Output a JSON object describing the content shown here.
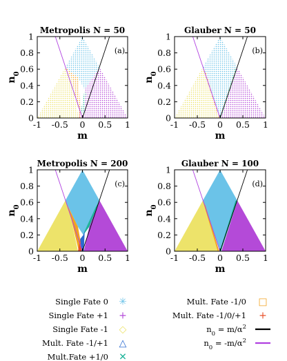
{
  "colors": {
    "fate0": "#6bc3e8",
    "fate_plus1": "#b44ad8",
    "fate_minus1": "#ede36a",
    "mult_m1_p1": "#2a6ad0",
    "mult_p1_0": "#1fb39a",
    "mult_m1_0": "#f2a321",
    "mult_m1_0_p1": "#e8502a",
    "line_pos": "#000000",
    "line_neg": "#b040e0"
  },
  "chart_data": [
    {
      "id": "a",
      "type": "area",
      "title": "Metropolis N = 50",
      "panel_label": "(a)",
      "xlabel": "m",
      "ylabel": "n0",
      "xlim": [
        -1,
        1
      ],
      "ylim": [
        0,
        1
      ],
      "xticks": [
        "-1",
        "-0.5",
        "0",
        "0.5",
        "1"
      ],
      "yticks": [
        "0",
        "0.2",
        "0.4",
        "0.6",
        "0.8",
        "1"
      ],
      "style": "dotted",
      "regions": [
        {
          "fate": "fate0",
          "polygon": [
            [
              -0.38,
              0.62
            ],
            [
              0,
              1
            ],
            [
              0.38,
              0.62
            ],
            [
              0.05,
              0.35
            ],
            [
              -0.1,
              0.5
            ]
          ]
        },
        {
          "fate": "fate_plus1",
          "polygon": [
            [
              0.05,
              0.35
            ],
            [
              0.38,
              0.62
            ],
            [
              1,
              0
            ],
            [
              0.02,
              0
            ]
          ]
        },
        {
          "fate": "fate_minus1",
          "polygon": [
            [
              -1,
              0
            ],
            [
              -0.38,
              0.62
            ],
            [
              -0.25,
              0.5
            ],
            [
              -0.08,
              0
            ]
          ]
        },
        {
          "fate": "mult_m1_0",
          "polygon": [
            [
              -0.38,
              0.62
            ],
            [
              -0.1,
              0.5
            ],
            [
              -0.05,
              0.2
            ],
            [
              -0.05,
              0
            ],
            [
              -0.25,
              0.5
            ]
          ]
        },
        {
          "fate": "mult_p1_0",
          "polygon": [
            [
              -0.03,
              0.1
            ],
            [
              0.05,
              0.35
            ],
            [
              0.08,
              0.3
            ],
            [
              0.02,
              0
            ]
          ]
        },
        {
          "fate": "mult_m1_0_p1",
          "polygon": [
            [
              -0.1,
              0
            ],
            [
              -0.02,
              0
            ],
            [
              -0.03,
              0.2
            ]
          ]
        }
      ],
      "lines": [
        {
          "name": "n0 = m/α²",
          "x": [
            0,
            0.6
          ],
          "y": [
            0,
            1
          ]
        },
        {
          "name": "n0 = -m/α²",
          "x": [
            -0.6,
            0
          ],
          "y": [
            1,
            0
          ]
        }
      ]
    },
    {
      "id": "b",
      "type": "area",
      "title": "Glauber N = 50",
      "panel_label": "(b)",
      "xlabel": "m",
      "ylabel": "n0",
      "xlim": [
        -1,
        1
      ],
      "ylim": [
        0,
        1
      ],
      "xticks": [
        "-1",
        "-0.5",
        "0",
        "0.5",
        "1"
      ],
      "yticks": [
        "0",
        "0.2",
        "0.4",
        "0.6",
        "0.8",
        "1"
      ],
      "style": "dotted",
      "regions": [
        {
          "fate": "fate0",
          "polygon": [
            [
              -0.38,
              0.62
            ],
            [
              0,
              1
            ],
            [
              0.38,
              0.62
            ],
            [
              0,
              0
            ]
          ]
        },
        {
          "fate": "fate_plus1",
          "polygon": [
            [
              0.38,
              0.62
            ],
            [
              1,
              0
            ],
            [
              0.02,
              0
            ]
          ]
        },
        {
          "fate": "fate_minus1",
          "polygon": [
            [
              -1,
              0
            ],
            [
              -0.38,
              0.62
            ],
            [
              -0.03,
              0
            ]
          ]
        },
        {
          "fate": "mult_m1_0",
          "polygon": [
            [
              -0.38,
              0.62
            ],
            [
              -0.3,
              0.55
            ],
            [
              -0.02,
              0
            ],
            [
              -0.05,
              0
            ]
          ]
        },
        {
          "fate": "mult_p1_0",
          "polygon": [
            [
              0.02,
              0
            ],
            [
              0.38,
              0.62
            ],
            [
              0.33,
              0.62
            ],
            [
              0,
              0.02
            ]
          ]
        }
      ],
      "lines": [
        {
          "name": "n0 = m/α²",
          "x": [
            0,
            0.6
          ],
          "y": [
            0,
            1
          ]
        },
        {
          "name": "n0 = -m/α²",
          "x": [
            -0.6,
            0
          ],
          "y": [
            1,
            0
          ]
        }
      ]
    },
    {
      "id": "c",
      "type": "area",
      "title": "Metropolis N = 200",
      "panel_label": "(c)",
      "xlabel": "m",
      "ylabel": "n0",
      "xlim": [
        -1,
        1
      ],
      "ylim": [
        0,
        1
      ],
      "xticks": [
        "-1",
        "-0.5",
        "0",
        "0.5",
        "1"
      ],
      "yticks": [
        "0",
        "0.2",
        "0.4",
        "0.6",
        "0.8",
        "1"
      ],
      "style": "solid",
      "regions": [
        {
          "fate": "fate0",
          "polygon": [
            [
              -0.38,
              0.62
            ],
            [
              0,
              1
            ],
            [
              0.38,
              0.62
            ],
            [
              0.15,
              0.3
            ],
            [
              0.02,
              0.2
            ],
            [
              -0.1,
              0.3
            ]
          ]
        },
        {
          "fate": "fate_plus1",
          "polygon": [
            [
              0.38,
              0.62
            ],
            [
              1,
              0
            ],
            [
              0.03,
              0
            ],
            [
              0.15,
              0.3
            ]
          ]
        },
        {
          "fate": "fate_minus1",
          "polygon": [
            [
              -1,
              0
            ],
            [
              -0.38,
              0.62
            ],
            [
              -0.25,
              0.4
            ],
            [
              -0.1,
              0
            ]
          ]
        },
        {
          "fate": "mult_m1_0",
          "polygon": [
            [
              -0.38,
              0.62
            ],
            [
              -0.1,
              0.3
            ],
            [
              -0.05,
              0.15
            ],
            [
              -0.08,
              0
            ],
            [
              -0.25,
              0.4
            ]
          ]
        },
        {
          "fate": "mult_p1_0",
          "polygon": [
            [
              0.02,
              0.2
            ],
            [
              0.15,
              0.3
            ],
            [
              0.38,
              0.62
            ],
            [
              0.3,
              0.55
            ],
            [
              0.05,
              0.25
            ]
          ]
        },
        {
          "fate": "mult_m1_p1",
          "polygon": [
            [
              -0.05,
              0.15
            ],
            [
              0.02,
              0.2
            ],
            [
              0.05,
              0.25
            ],
            [
              0.03,
              0
            ],
            [
              -0.02,
              0
            ]
          ]
        },
        {
          "fate": "mult_m1_0_p1",
          "polygon": [
            [
              -0.1,
              0
            ],
            [
              -0.02,
              0
            ],
            [
              -0.05,
              0.15
            ]
          ]
        }
      ],
      "lines": [
        {
          "name": "n0 = m/α²",
          "x": [
            0,
            0.6
          ],
          "y": [
            0,
            1
          ]
        },
        {
          "name": "n0 = -m/α²",
          "x": [
            -0.6,
            0
          ],
          "y": [
            1,
            0
          ]
        }
      ]
    },
    {
      "id": "d",
      "type": "area",
      "title": "Glauber N = 100",
      "panel_label": "(d)",
      "xlabel": "m",
      "ylabel": "n0",
      "xlim": [
        -1,
        1
      ],
      "ylim": [
        0,
        1
      ],
      "xticks": [
        "-1",
        "-0.5",
        "0",
        "0.5",
        "1"
      ],
      "yticks": [
        "0",
        "0.2",
        "0.4",
        "0.6",
        "0.8",
        "1"
      ],
      "style": "solid",
      "regions": [
        {
          "fate": "fate0",
          "polygon": [
            [
              -0.38,
              0.62
            ],
            [
              0,
              1
            ],
            [
              0.38,
              0.62
            ],
            [
              0,
              0
            ]
          ]
        },
        {
          "fate": "fate_plus1",
          "polygon": [
            [
              0.38,
              0.62
            ],
            [
              1,
              0
            ],
            [
              0.03,
              0
            ]
          ]
        },
        {
          "fate": "fate_minus1",
          "polygon": [
            [
              -1,
              0
            ],
            [
              -0.38,
              0.62
            ],
            [
              -0.03,
              0
            ]
          ]
        },
        {
          "fate": "mult_m1_0",
          "polygon": [
            [
              -0.38,
              0.62
            ],
            [
              -0.32,
              0.56
            ],
            [
              -0.02,
              0
            ],
            [
              -0.05,
              0
            ]
          ]
        },
        {
          "fate": "mult_p1_0",
          "polygon": [
            [
              0.02,
              0
            ],
            [
              0.38,
              0.62
            ],
            [
              0.34,
              0.62
            ],
            [
              0,
              0.01
            ]
          ]
        }
      ],
      "lines": [
        {
          "name": "n0 = m/α²",
          "x": [
            0,
            0.6
          ],
          "y": [
            0,
            1
          ]
        },
        {
          "name": "n0 = -m/α²",
          "x": [
            -0.6,
            0
          ],
          "y": [
            1,
            0
          ]
        }
      ]
    }
  ],
  "legend": {
    "left": [
      {
        "label": "Single Fate 0",
        "fate": "fate0",
        "glyph": "✳"
      },
      {
        "label": "Single Fate +1",
        "fate": "fate_plus1",
        "glyph": "+"
      },
      {
        "label": "Single Fate -1",
        "fate": "fate_minus1",
        "glyph": "◇"
      },
      {
        "label": "Mult. Fate -1/+1",
        "fate": "mult_m1_p1",
        "glyph": "△"
      },
      {
        "label": "Mult.Fate +1/0",
        "fate": "mult_p1_0",
        "glyph": "✕"
      }
    ],
    "right": [
      {
        "label": "Mult. Fate -1/0",
        "fate": "mult_m1_0",
        "glyph": "□"
      },
      {
        "label": "Mult. Fate -1/0/+1",
        "fate": "mult_m1_0_p1",
        "glyph": "+"
      },
      {
        "label": "n0 = m/α2",
        "fate": "line_pos",
        "glyph": "line"
      },
      {
        "label": "n0 = -m/α2",
        "fate": "line_neg",
        "glyph": "line"
      }
    ]
  }
}
